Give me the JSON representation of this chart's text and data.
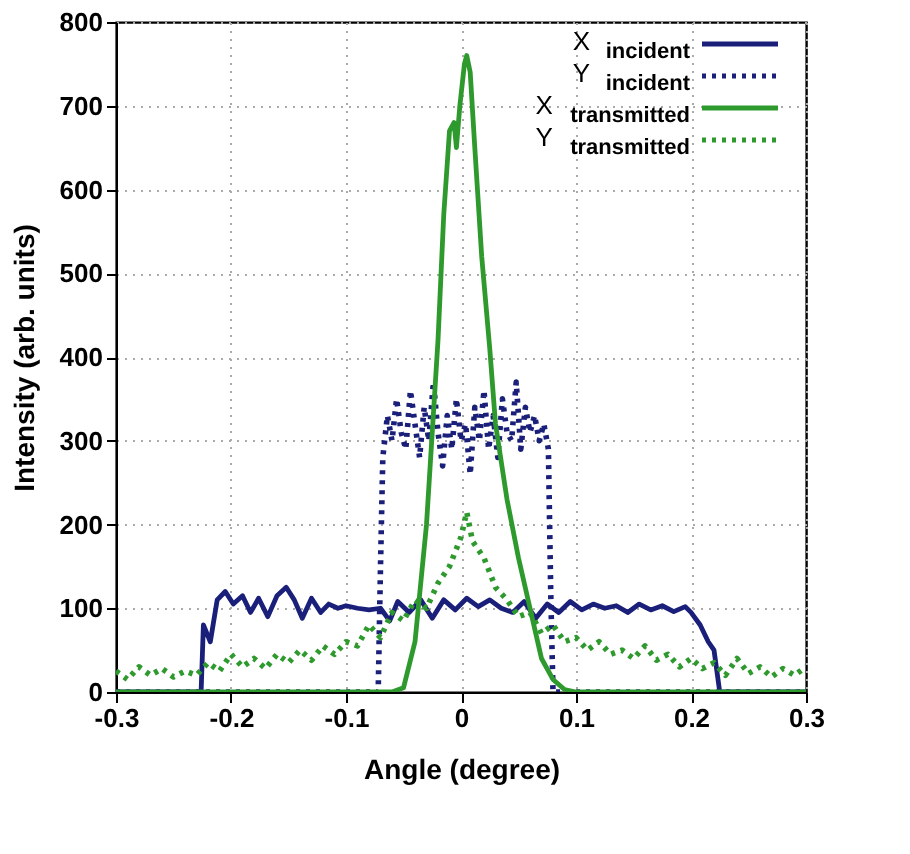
{
  "chart_data": {
    "type": "line",
    "xlabel": "Angle (degree)",
    "ylabel": "Intensity (arb. units)",
    "xlim": [
      -0.3,
      0.3
    ],
    "xticks": [
      -0.3,
      -0.2,
      -0.1,
      0,
      0.1,
      0.2,
      0.3
    ],
    "ylim": [
      0,
      800
    ],
    "yticks": [
      0,
      100,
      200,
      300,
      400,
      500,
      600,
      700,
      800
    ],
    "grid": true,
    "legend": "top right",
    "marker": "none",
    "series": [
      {
        "name": "X$_{incident}$",
        "color": "#1a1f7a",
        "line_style": "solid",
        "x": [
          -0.3,
          -0.226,
          -0.224,
          -0.218,
          -0.212,
          -0.205,
          -0.198,
          -0.19,
          -0.183,
          -0.176,
          -0.168,
          -0.16,
          -0.152,
          -0.145,
          -0.138,
          -0.13,
          -0.122,
          -0.115,
          -0.107,
          -0.1,
          -0.09,
          -0.08,
          -0.07,
          -0.062,
          -0.055,
          -0.045,
          -0.035,
          -0.025,
          -0.015,
          -0.005,
          0.005,
          0.015,
          0.025,
          0.035,
          0.045,
          0.055,
          0.065,
          0.075,
          0.085,
          0.095,
          0.105,
          0.115,
          0.125,
          0.135,
          0.145,
          0.155,
          0.165,
          0.175,
          0.185,
          0.195,
          0.2,
          0.208,
          0.215,
          0.22,
          0.225,
          0.3
        ],
        "values": [
          0,
          0,
          80,
          60,
          110,
          120,
          105,
          115,
          95,
          112,
          90,
          115,
          125,
          110,
          88,
          112,
          95,
          105,
          100,
          103,
          100,
          98,
          100,
          85,
          108,
          95,
          110,
          88,
          110,
          98,
          112,
          102,
          110,
          100,
          95,
          108,
          88,
          105,
          95,
          108,
          98,
          105,
          100,
          103,
          95,
          105,
          98,
          103,
          96,
          102,
          95,
          80,
          60,
          50,
          0,
          0
        ]
      },
      {
        "name": "Y$_{incident}$",
        "color": "#1a1f7a",
        "line_style": "dotted",
        "x": [
          -0.3,
          -0.072,
          -0.07,
          -0.068,
          -0.064,
          -0.06,
          -0.056,
          -0.052,
          -0.048,
          -0.044,
          -0.04,
          -0.036,
          -0.032,
          -0.028,
          -0.024,
          -0.02,
          -0.016,
          -0.012,
          -0.008,
          -0.004,
          0,
          0.004,
          0.008,
          0.012,
          0.016,
          0.02,
          0.024,
          0.028,
          0.032,
          0.036,
          0.04,
          0.044,
          0.048,
          0.052,
          0.056,
          0.06,
          0.064,
          0.068,
          0.072,
          0.076,
          0.078,
          0.08,
          0.3
        ],
        "values": [
          0,
          0,
          150,
          280,
          330,
          300,
          350,
          310,
          290,
          360,
          320,
          280,
          340,
          300,
          370,
          310,
          270,
          330,
          290,
          350,
          300,
          320,
          260,
          340,
          300,
          360,
          290,
          330,
          280,
          350,
          310,
          300,
          370,
          290,
          340,
          310,
          330,
          300,
          320,
          290,
          120,
          0,
          0
        ]
      },
      {
        "name": "X$_{transmitted}$",
        "color": "#2e9a2e",
        "line_style": "solid",
        "x": [
          -0.3,
          -0.06,
          -0.05,
          -0.04,
          -0.03,
          -0.02,
          -0.015,
          -0.01,
          -0.006,
          -0.004,
          -0.001,
          0.003,
          0.005,
          0.008,
          0.012,
          0.018,
          0.025,
          0.03,
          0.04,
          0.05,
          0.06,
          0.065,
          0.07,
          0.08,
          0.09,
          0.1,
          0.3
        ],
        "values": [
          0,
          0,
          5,
          60,
          200,
          420,
          570,
          670,
          680,
          650,
          700,
          750,
          760,
          740,
          650,
          520,
          410,
          320,
          230,
          160,
          100,
          70,
          40,
          15,
          3,
          0,
          0
        ]
      },
      {
        "name": "Y$_{transmitted}$",
        "color": "#2e9a2e",
        "line_style": "dotted",
        "x": [
          -0.3,
          -0.29,
          -0.28,
          -0.27,
          -0.26,
          -0.25,
          -0.24,
          -0.23,
          -0.22,
          -0.21,
          -0.2,
          -0.19,
          -0.18,
          -0.17,
          -0.16,
          -0.15,
          -0.14,
          -0.13,
          -0.12,
          -0.11,
          -0.1,
          -0.09,
          -0.08,
          -0.07,
          -0.06,
          -0.05,
          -0.04,
          -0.03,
          -0.02,
          -0.01,
          0,
          0.005,
          0.01,
          0.02,
          0.03,
          0.04,
          0.05,
          0.06,
          0.07,
          0.08,
          0.09,
          0.1,
          0.11,
          0.12,
          0.13,
          0.14,
          0.15,
          0.16,
          0.17,
          0.18,
          0.19,
          0.2,
          0.21,
          0.22,
          0.23,
          0.24,
          0.25,
          0.26,
          0.27,
          0.28,
          0.29,
          0.3
        ],
        "values": [
          25,
          15,
          30,
          20,
          28,
          18,
          25,
          20,
          35,
          25,
          45,
          30,
          40,
          28,
          45,
          35,
          50,
          38,
          55,
          45,
          60,
          55,
          80,
          65,
          95,
          85,
          110,
          100,
          130,
          150,
          185,
          215,
          180,
          160,
          125,
          110,
          90,
          95,
          70,
          80,
          60,
          65,
          50,
          60,
          45,
          50,
          40,
          55,
          38,
          45,
          30,
          40,
          28,
          35,
          20,
          40,
          22,
          30,
          18,
          28,
          20,
          30
        ]
      }
    ]
  }
}
